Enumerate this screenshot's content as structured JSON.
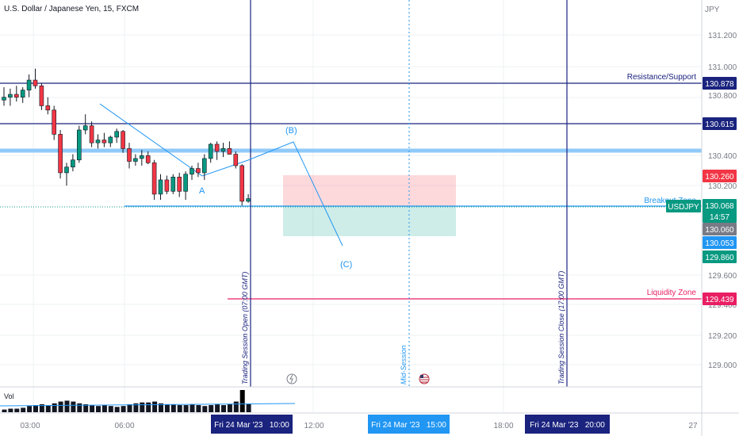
{
  "header": {
    "symbol_title": "U.S. Dollar / Japanese Yen, 15, FXCM"
  },
  "axis": {
    "currency": "JPY",
    "ticks": [
      "131.200",
      "131.000",
      "130.800",
      "130.400",
      "130.200",
      "129.600",
      "129.400",
      "129.200",
      "129.000"
    ]
  },
  "price_tags": [
    {
      "text": "130.878",
      "color": "#1a237e"
    },
    {
      "text": "130.615",
      "color": "#1a237e"
    },
    {
      "text": "130.260",
      "color": "#f23645"
    },
    {
      "text": "130.068",
      "color": "#089981"
    },
    {
      "text": "14:57",
      "color": "#089981"
    },
    {
      "text": "130.060",
      "color": "#787b86"
    },
    {
      "text": "130.053",
      "color": "#2196f3"
    },
    {
      "text": "129.860",
      "color": "#089981"
    },
    {
      "text": "129.439",
      "color": "#e91e63"
    }
  ],
  "symbol_tag": "USDJPY",
  "labels": {
    "resistance": "Resistance/Support",
    "breakout": "Breakout Zone",
    "liquidity": "Liquidity Zone",
    "session_open": "Trading Session Open (07:00 GMT)",
    "session_close": "Trading Session Close (17:00 GMT)",
    "mid_session": "Mid-Session",
    "wave_a": "A",
    "wave_b": "(B)",
    "wave_c": "(C)",
    "volume": "Vol"
  },
  "time_axis": {
    "ticks": [
      "03:00",
      "06:00",
      "12:00",
      "18:00",
      "27"
    ],
    "tags": [
      "Fri 24 Mar '23   10:00",
      "Fri 24 Mar '23   15:00",
      "Fri 24 Mar '23   20:00"
    ]
  },
  "chart_data": {
    "type": "candlestick",
    "title": "U.S. Dollar / Japanese Yen, 15, FXCM",
    "ylabel": "JPY",
    "ylim": [
      128.9,
      131.3
    ],
    "levels": [
      {
        "name": "Resistance/Support",
        "value": 130.878
      },
      {
        "name": "130.615",
        "value": 130.615
      },
      {
        "name": "Breakout Zone",
        "value": 130.068
      },
      {
        "name": "Liquidity Zone",
        "value": 129.439
      }
    ],
    "candles": [
      {
        "o": 130.76,
        "h": 130.85,
        "l": 130.72,
        "c": 130.78
      },
      {
        "o": 130.78,
        "h": 130.84,
        "l": 130.72,
        "c": 130.8
      },
      {
        "o": 130.8,
        "h": 130.86,
        "l": 130.75,
        "c": 130.78
      },
      {
        "o": 130.78,
        "h": 130.85,
        "l": 130.74,
        "c": 130.83
      },
      {
        "o": 130.83,
        "h": 130.94,
        "l": 130.78,
        "c": 130.9
      },
      {
        "o": 130.9,
        "h": 130.98,
        "l": 130.84,
        "c": 130.86
      },
      {
        "o": 130.86,
        "h": 130.88,
        "l": 130.69,
        "c": 130.72
      },
      {
        "o": 130.72,
        "h": 130.78,
        "l": 130.66,
        "c": 130.69
      },
      {
        "o": 130.69,
        "h": 130.72,
        "l": 130.48,
        "c": 130.52
      },
      {
        "o": 130.52,
        "h": 130.55,
        "l": 130.21,
        "c": 130.25
      },
      {
        "o": 130.25,
        "h": 130.32,
        "l": 130.16,
        "c": 130.29
      },
      {
        "o": 130.29,
        "h": 130.38,
        "l": 130.26,
        "c": 130.34
      },
      {
        "o": 130.34,
        "h": 130.58,
        "l": 130.32,
        "c": 130.55
      },
      {
        "o": 130.55,
        "h": 130.66,
        "l": 130.52,
        "c": 130.58
      },
      {
        "o": 130.58,
        "h": 130.61,
        "l": 130.43,
        "c": 130.46
      },
      {
        "o": 130.46,
        "h": 130.52,
        "l": 130.42,
        "c": 130.48
      },
      {
        "o": 130.48,
        "h": 130.53,
        "l": 130.43,
        "c": 130.46
      },
      {
        "o": 130.46,
        "h": 130.51,
        "l": 130.43,
        "c": 130.5
      },
      {
        "o": 130.5,
        "h": 130.56,
        "l": 130.46,
        "c": 130.54
      },
      {
        "o": 130.54,
        "h": 130.55,
        "l": 130.39,
        "c": 130.42
      },
      {
        "o": 130.42,
        "h": 130.46,
        "l": 130.28,
        "c": 130.33
      },
      {
        "o": 130.33,
        "h": 130.38,
        "l": 130.3,
        "c": 130.35
      },
      {
        "o": 130.35,
        "h": 130.41,
        "l": 130.3,
        "c": 130.37
      },
      {
        "o": 130.37,
        "h": 130.4,
        "l": 130.31,
        "c": 130.32
      },
      {
        "o": 130.32,
        "h": 130.34,
        "l": 130.06,
        "c": 130.1
      },
      {
        "o": 130.1,
        "h": 130.24,
        "l": 130.06,
        "c": 130.2
      },
      {
        "o": 130.2,
        "h": 130.23,
        "l": 130.1,
        "c": 130.12
      },
      {
        "o": 130.12,
        "h": 130.24,
        "l": 130.1,
        "c": 130.22
      },
      {
        "o": 130.22,
        "h": 130.25,
        "l": 130.08,
        "c": 130.12
      },
      {
        "o": 130.12,
        "h": 130.26,
        "l": 130.06,
        "c": 130.24
      },
      {
        "o": 130.24,
        "h": 130.3,
        "l": 130.2,
        "c": 130.28
      },
      {
        "o": 130.28,
        "h": 130.32,
        "l": 130.22,
        "c": 130.25
      },
      {
        "o": 130.25,
        "h": 130.38,
        "l": 130.2,
        "c": 130.35
      },
      {
        "o": 130.35,
        "h": 130.46,
        "l": 130.32,
        "c": 130.45
      },
      {
        "o": 130.45,
        "h": 130.47,
        "l": 130.34,
        "c": 130.4
      },
      {
        "o": 130.4,
        "h": 130.46,
        "l": 130.36,
        "c": 130.42
      },
      {
        "o": 130.42,
        "h": 130.47,
        "l": 130.38,
        "c": 130.38
      },
      {
        "o": 130.38,
        "h": 130.4,
        "l": 130.28,
        "c": 130.3
      },
      {
        "o": 130.3,
        "h": 130.31,
        "l": 130.02,
        "c": 130.05
      },
      {
        "o": 130.05,
        "h": 130.1,
        "l": 130.04,
        "c": 130.068
      }
    ],
    "volume": [
      3,
      4,
      4,
      5,
      7,
      8,
      9,
      8,
      10,
      12,
      13,
      12,
      10,
      9,
      8,
      7,
      8,
      7,
      6,
      7,
      9,
      10,
      11,
      11,
      12,
      10,
      9,
      9,
      8,
      8,
      9,
      8,
      7,
      8,
      9,
      8,
      9,
      12,
      25,
      9
    ],
    "trade_setup": {
      "entry": 130.068,
      "stop": 130.26,
      "target": 129.86
    }
  }
}
